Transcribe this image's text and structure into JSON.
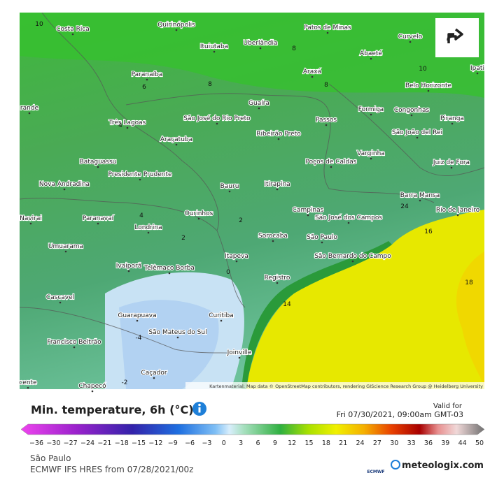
{
  "map": {
    "cities": [
      "Costa Rica",
      "Quirinópolis",
      "Patos de Minas",
      "Ituiutaba",
      "Uberlândia",
      "Curvelo",
      "Abaeté",
      "Paranaíba",
      "Araxá",
      "Belo Horizonte",
      "Guaíra",
      "São José do Rio Preto",
      "Formiga",
      "Congonhas",
      "Passos",
      "Três Lagoas",
      "Ribeirão Preto",
      "Piranga",
      "São João del Rei",
      "Araçatuba",
      "Varginha",
      "Poços de Caldas",
      "Juiz de Fora",
      "Bataguassu",
      "Presidente Prudente",
      "Nova Andradina",
      "Bauru",
      "Itirapina",
      "Barra Mansa",
      "Campinas",
      "São José dos Campos",
      "Rio de Janeiro",
      "Navirai",
      "Paranavaí",
      "Ourinhos",
      "Londrina",
      "Sorocaba",
      "São Paulo",
      "São Bernardo do Campo",
      "Umuarama",
      "Itapeva",
      "Ivaiporã",
      "Telêmaco Borba",
      "Registro",
      "Cascavel",
      "Guarapuava",
      "Curitiba",
      "São Mateus do Sul",
      "Francisco Beltrão",
      "Joinville",
      "Caçador",
      "Chapecó",
      "rande",
      "cente",
      "Ipati"
    ],
    "contour_labels": [
      "10",
      "8",
      "6",
      "8",
      "10",
      "4",
      "2",
      "2",
      "4",
      "0",
      "-4",
      "-2",
      "14",
      "16",
      "18",
      "24",
      "8"
    ],
    "attribution": "Kartenmaterial: Map data © OpenStreetMap contributors, rendering GIScience Research Group @ Heidelberg University"
  },
  "legend": {
    "title": "Min. temperature, 6h (°C)",
    "valid_label": "Valid for",
    "valid_time": "Fri 07/30/2021, 09:00am GMT-03",
    "ticks": [
      "−36",
      "−30",
      "−27",
      "−24",
      "−21",
      "−18",
      "−15",
      "−12",
      "−9",
      "−6",
      "−3",
      "0",
      "3",
      "6",
      "9",
      "12",
      "15",
      "18",
      "21",
      "24",
      "27",
      "30",
      "33",
      "36",
      "39",
      "44",
      "50"
    ]
  },
  "footer": {
    "location": "São Paulo",
    "model": "ECMWF IFS HRES from 07/28/2021/00z",
    "ecmwf": "ECMWF",
    "brand": "meteologix.com"
  }
}
